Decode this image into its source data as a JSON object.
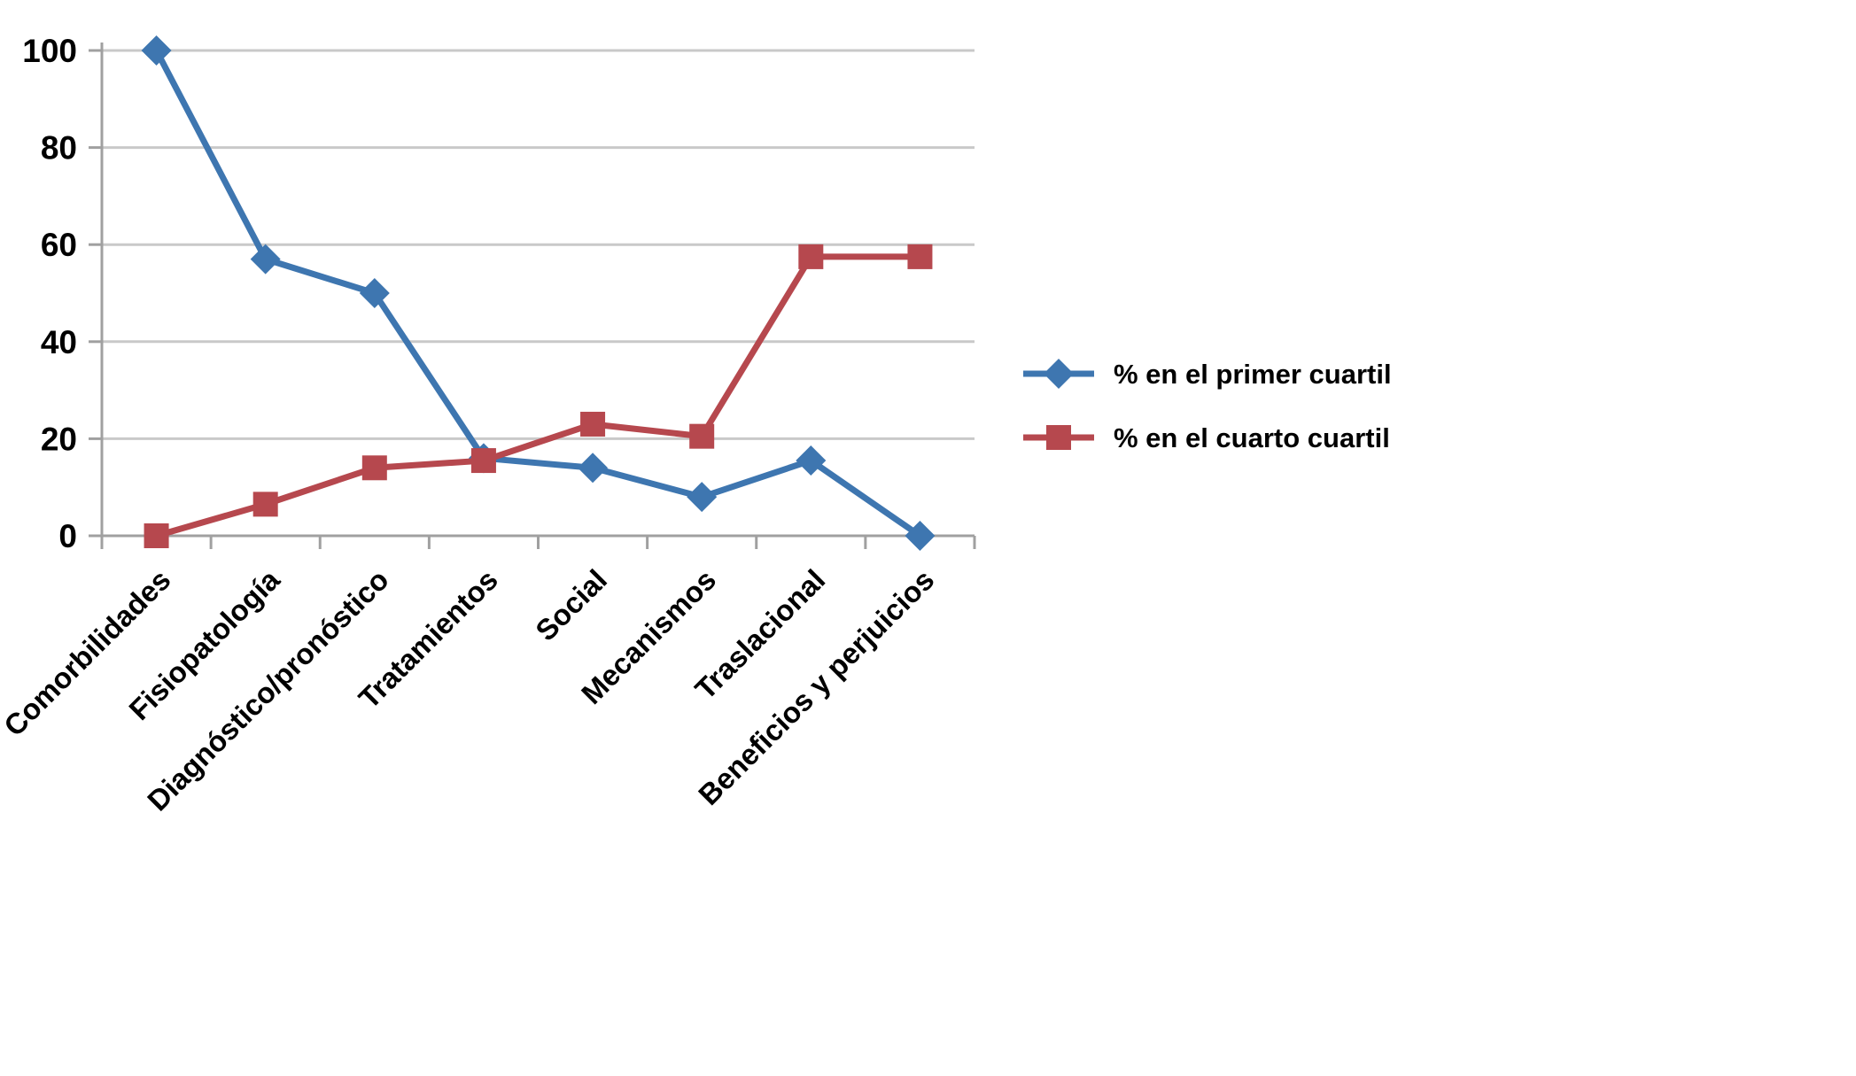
{
  "chart_data": {
    "type": "line",
    "title": "",
    "xlabel": "",
    "ylabel": "",
    "categories": [
      "Comorbilidades",
      "Fisiopatología",
      "Diagnóstico/pronóstico",
      "Tratamientos",
      "Social",
      "Mecanismos",
      "Traslacional",
      "Beneficios y perjuicios"
    ],
    "series": [
      {
        "name": "% en el primer cuartil",
        "color": "#3E76B0",
        "marker": "diamond",
        "values": [
          100,
          57,
          50,
          16,
          14,
          8,
          15.5,
          0
        ]
      },
      {
        "name": "% en el cuarto cuartil",
        "color": "#B6484E",
        "marker": "square",
        "values": [
          0,
          6.5,
          14,
          15.5,
          23,
          20.5,
          57.5,
          57.5
        ]
      }
    ],
    "ylim": [
      0,
      100
    ],
    "yticks": [
      0,
      20,
      40,
      60,
      80,
      100
    ],
    "grid": "horizontal",
    "legend_position": "right",
    "colors": {
      "gridline": "#C9C9C9",
      "axis": "#A0A0A0",
      "text": "#000000",
      "background": "#FFFFFF"
    }
  }
}
